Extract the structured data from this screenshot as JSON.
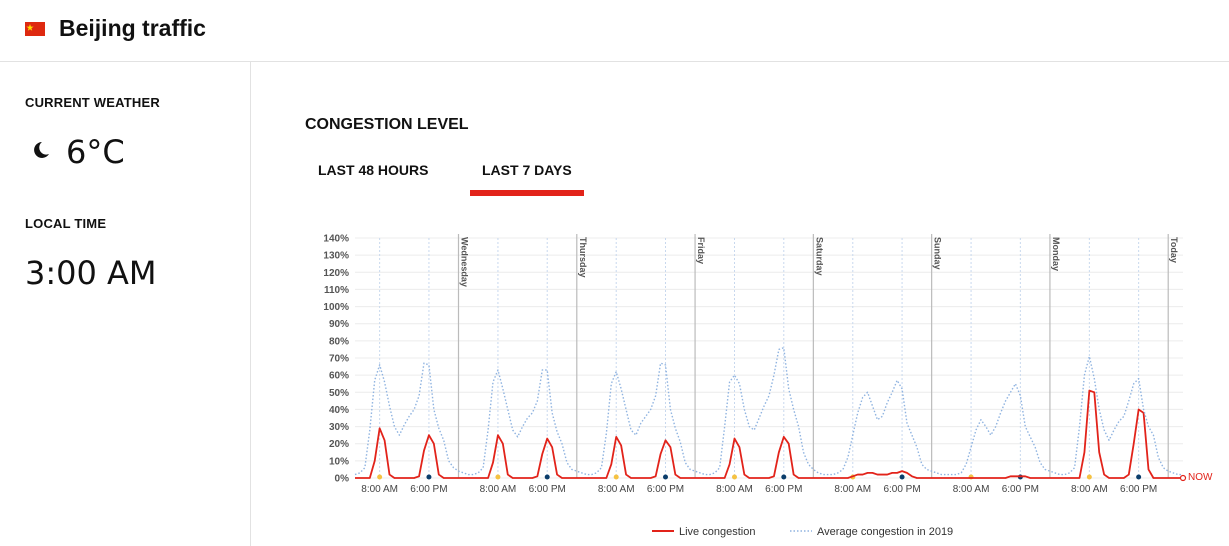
{
  "header": {
    "title": "Beijing traffic"
  },
  "weather": {
    "label": "CURRENT WEATHER",
    "temperature": "6°C"
  },
  "local_time": {
    "label": "LOCAL TIME",
    "value": "3:00 AM"
  },
  "section_title": "CONGESTION LEVEL",
  "tabs": [
    "LAST 48 HOURS",
    "LAST 7 DAYS"
  ],
  "active_tab": 1,
  "chart_data": {
    "type": "line",
    "x": [
      0,
      1,
      2,
      3,
      4,
      5,
      6,
      7,
      8,
      9,
      10,
      11,
      12,
      13,
      14,
      15,
      16,
      17,
      18,
      19,
      20,
      21,
      22,
      23,
      24,
      25,
      26,
      27,
      28,
      29,
      30,
      31,
      32,
      33,
      34,
      35,
      36,
      37,
      38,
      39,
      40,
      41,
      42,
      43,
      44,
      45,
      46,
      47,
      48,
      49,
      50,
      51,
      52,
      53,
      54,
      55,
      56,
      57,
      58,
      59,
      60,
      61,
      62,
      63,
      64,
      65,
      66,
      67,
      68,
      69,
      70,
      71,
      72,
      73,
      74,
      75,
      76,
      77,
      78,
      79,
      80,
      81,
      82,
      83,
      84,
      85,
      86,
      87,
      88,
      89,
      90,
      91,
      92,
      93,
      94,
      95,
      96,
      97,
      98,
      99,
      100,
      101,
      102,
      103,
      104,
      105,
      106,
      107,
      108,
      109,
      110,
      111,
      112,
      113,
      114,
      115,
      116,
      117,
      118,
      119,
      120,
      121,
      122,
      123,
      124,
      125,
      126,
      127,
      128,
      129,
      130,
      131,
      132,
      133,
      134,
      135,
      136,
      137,
      138,
      139,
      140,
      141,
      142,
      143,
      144,
      145,
      146,
      147,
      148,
      149,
      150,
      151,
      152,
      153,
      154,
      155,
      156,
      157,
      158,
      159,
      160,
      161,
      162,
      163,
      164,
      165,
      166,
      167,
      168
    ],
    "xlim": [
      0,
      168
    ],
    "xticks": [
      {
        "value": 5,
        "label": "8:00 AM"
      },
      {
        "value": 15,
        "label": "6:00 PM"
      },
      {
        "value": 29,
        "label": "8:00 AM"
      },
      {
        "value": 39,
        "label": "6:00 PM"
      },
      {
        "value": 53,
        "label": "8:00 AM"
      },
      {
        "value": 63,
        "label": "6:00 PM"
      },
      {
        "value": 77,
        "label": "8:00 AM"
      },
      {
        "value": 87,
        "label": "6:00 PM"
      },
      {
        "value": 101,
        "label": "8:00 AM"
      },
      {
        "value": 111,
        "label": "6:00 PM"
      },
      {
        "value": 125,
        "label": "8:00 AM"
      },
      {
        "value": 135,
        "label": "6:00 PM"
      },
      {
        "value": 149,
        "label": "8:00 AM"
      },
      {
        "value": 159,
        "label": "6:00 PM"
      }
    ],
    "tick_dot_colors": [
      "#f5c242",
      "#0b3d6b"
    ],
    "day_lines": [
      {
        "value": 21,
        "label": "Wednesday"
      },
      {
        "value": 45,
        "label": "Thursday"
      },
      {
        "value": 69,
        "label": "Friday"
      },
      {
        "value": 93,
        "label": "Saturday"
      },
      {
        "value": 117,
        "label": "Sunday"
      },
      {
        "value": 141,
        "label": "Monday"
      },
      {
        "value": 165,
        "label": "Today"
      }
    ],
    "now_label": "NOW",
    "ylim": [
      0,
      140
    ],
    "yticks": [
      {
        "value": 0,
        "label": "0%"
      },
      {
        "value": 10,
        "label": "10%"
      },
      {
        "value": 20,
        "label": "20%"
      },
      {
        "value": 30,
        "label": "30%"
      },
      {
        "value": 40,
        "label": "40%"
      },
      {
        "value": 50,
        "label": "50%"
      },
      {
        "value": 60,
        "label": "60%"
      },
      {
        "value": 70,
        "label": "70%"
      },
      {
        "value": 80,
        "label": "80%"
      },
      {
        "value": 90,
        "label": "90%"
      },
      {
        "value": 100,
        "label": "100%"
      },
      {
        "value": 110,
        "label": "110%"
      },
      {
        "value": 120,
        "label": "120%"
      },
      {
        "value": 130,
        "label": "130%"
      },
      {
        "value": 140,
        "label": "140%"
      }
    ],
    "grid": true,
    "series": [
      {
        "name": "Live congestion",
        "color": "#e2231a",
        "style": "solid",
        "values": [
          0,
          0,
          0,
          0,
          10,
          29,
          22,
          2,
          0,
          0,
          0,
          0,
          0,
          1,
          16,
          25,
          20,
          2,
          0,
          0,
          0,
          0,
          0,
          0,
          0,
          0,
          0,
          0,
          9,
          25,
          20,
          2,
          0,
          0,
          0,
          0,
          0,
          1,
          14,
          23,
          18,
          2,
          0,
          0,
          0,
          0,
          0,
          0,
          0,
          0,
          0,
          0,
          8,
          24,
          19,
          2,
          0,
          0,
          0,
          0,
          0,
          1,
          14,
          22,
          18,
          2,
          0,
          0,
          0,
          0,
          0,
          0,
          0,
          0,
          0,
          0,
          8,
          23,
          18,
          2,
          0,
          0,
          0,
          0,
          0,
          1,
          15,
          24,
          20,
          2,
          0,
          0,
          0,
          0,
          0,
          0,
          0,
          0,
          0,
          0,
          0,
          1,
          2,
          2,
          3,
          3,
          2,
          2,
          2,
          3,
          3,
          4,
          3,
          1,
          0,
          0,
          0,
          0,
          0,
          0,
          0,
          0,
          0,
          0,
          0,
          0,
          0,
          0,
          0,
          0,
          0,
          0,
          0,
          1,
          1,
          1,
          1,
          0,
          0,
          0,
          0,
          0,
          0,
          0,
          0,
          0,
          0,
          0,
          15,
          51,
          50,
          15,
          2,
          0,
          0,
          0,
          0,
          2,
          20,
          40,
          38,
          5,
          0,
          0,
          0,
          0,
          0,
          0,
          0
        ]
      },
      {
        "name": "Average congestion in 2019",
        "color": "#8fb3e0",
        "style": "dotted",
        "values": [
          2,
          3,
          6,
          28,
          57,
          66,
          56,
          42,
          30,
          25,
          31,
          36,
          40,
          48,
          67,
          66,
          40,
          29,
          22,
          10,
          6,
          4,
          3,
          2,
          2,
          3,
          6,
          28,
          56,
          63,
          52,
          40,
          28,
          24,
          30,
          35,
          38,
          45,
          63,
          63,
          38,
          27,
          20,
          9,
          5,
          4,
          3,
          2,
          2,
          3,
          6,
          26,
          55,
          62,
          52,
          40,
          28,
          25,
          32,
          36,
          40,
          48,
          67,
          66,
          40,
          29,
          21,
          9,
          5,
          4,
          3,
          2,
          2,
          3,
          6,
          30,
          56,
          60,
          55,
          40,
          30,
          28,
          35,
          42,
          48,
          60,
          75,
          76,
          52,
          40,
          30,
          15,
          8,
          5,
          3,
          2,
          2,
          2,
          3,
          5,
          12,
          25,
          38,
          47,
          50,
          42,
          34,
          36,
          44,
          50,
          57,
          52,
          32,
          25,
          18,
          8,
          5,
          4,
          3,
          2,
          2,
          2,
          2,
          3,
          8,
          18,
          28,
          34,
          30,
          25,
          30,
          38,
          45,
          50,
          55,
          48,
          30,
          24,
          18,
          9,
          5,
          4,
          3,
          2,
          2,
          3,
          6,
          30,
          60,
          71,
          58,
          40,
          28,
          22,
          28,
          33,
          36,
          45,
          55,
          58,
          40,
          30,
          25,
          12,
          6,
          4,
          3,
          2,
          2
        ]
      }
    ]
  }
}
